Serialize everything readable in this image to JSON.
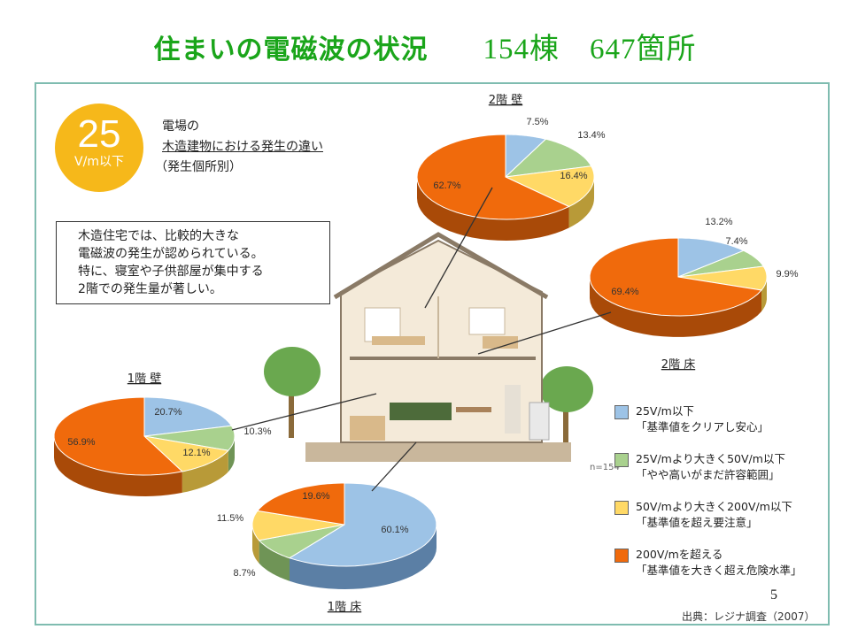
{
  "title": {
    "main": "住まいの電磁波の状況",
    "count": "154棟　647箇所"
  },
  "badge": {
    "value": "25",
    "unit": "V/m以下"
  },
  "heading": {
    "line1": "電場の",
    "line2": "木造建物における発生の違い",
    "line3": "（発生個所別）"
  },
  "note": {
    "lines": [
      "木造住宅では、比較的大きな",
      "電磁波の発生が認められている。",
      "特に、寝室や子供部屋が集中する",
      "2階での発生量が著しい。"
    ]
  },
  "n_label": "n=154",
  "legend": [
    {
      "color": "#9dc3e6",
      "line1": "25V/m以下",
      "line2": "「基準値をクリアし安心」"
    },
    {
      "color": "#a9d18e",
      "line1": "25V/mより大きく50V/m以下",
      "line2": "「やや高いがまだ許容範囲」"
    },
    {
      "color": "#ffd966",
      "line1": "50V/mより大きく200V/m以下",
      "line2": "「基準値を超え要注意」"
    },
    {
      "color": "#f06a0c",
      "line1": "200V/mを超える",
      "line2": "「基準値を大きく超え危険水準」"
    }
  ],
  "page_number": "5",
  "source": "出典：レジナ調査（2007）",
  "chart_data": [
    {
      "type": "pie",
      "title": "2階 壁",
      "categories": [
        "25V/m以下",
        "25V/mより大きく50V/m以下",
        "50V/mより大きく200V/m以下",
        "200V/mを超える"
      ],
      "values": [
        7.5,
        13.4,
        16.4,
        62.7
      ],
      "labels": [
        "7.5%",
        "13.4%",
        "16.4%",
        "62.7%"
      ]
    },
    {
      "type": "pie",
      "title": "2階 床",
      "categories": [
        "25V/m以下",
        "25V/mより大きく50V/m以下",
        "50V/mより大きく200V/m以下",
        "200V/mを超える"
      ],
      "values": [
        13.2,
        7.4,
        9.9,
        69.4
      ],
      "labels": [
        "13.2%",
        "7.4%",
        "9.9%",
        "69.4%"
      ]
    },
    {
      "type": "pie",
      "title": "1階 壁",
      "categories": [
        "25V/m以下",
        "25V/mより大きく50V/m以下",
        "50V/mより大きく200V/m以下",
        "200V/mを超える"
      ],
      "values": [
        20.7,
        10.3,
        12.1,
        56.9
      ],
      "labels": [
        "20.7%",
        "10.3%",
        "12.1%",
        "56.9%"
      ]
    },
    {
      "type": "pie",
      "title": "1階 床",
      "categories": [
        "25V/m以下",
        "25V/mより大きく50V/m以下",
        "50V/mより大きく200V/m以下",
        "200V/mを超える"
      ],
      "values": [
        60.1,
        8.7,
        11.5,
        19.6
      ],
      "labels": [
        "60.1%",
        "8.7%",
        "11.5%",
        "19.6%"
      ]
    }
  ]
}
